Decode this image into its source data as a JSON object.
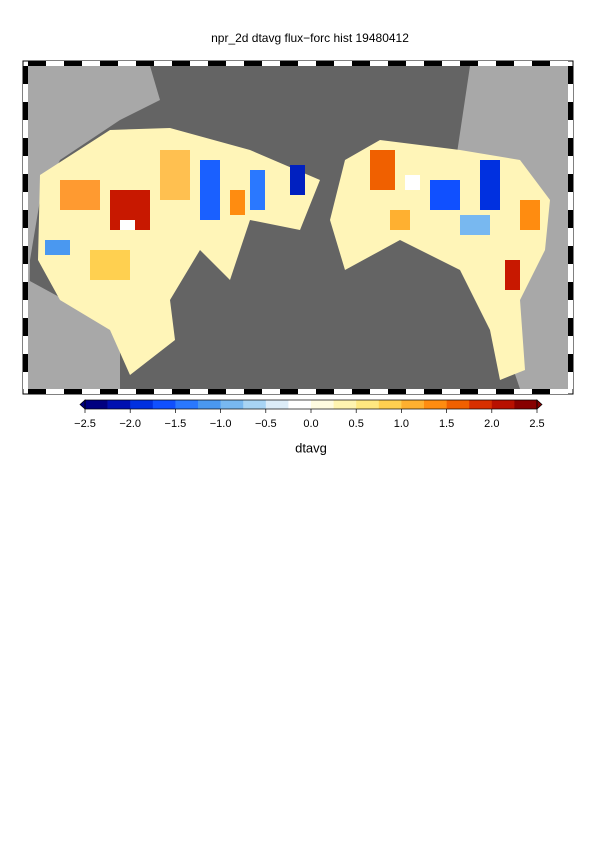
{
  "chart_data": {
    "type": "map",
    "title": "npr_2d dtavg flux−forc hist 19480412",
    "colorbar": {
      "label": "dtavg",
      "lim": [
        -2.5,
        2.5
      ],
      "ticks": [
        {
          "value": -2.5,
          "label": "−2.5"
        },
        {
          "value": -2.0,
          "label": "−2.0"
        },
        {
          "value": -1.5,
          "label": "−1.5"
        },
        {
          "value": -1.0,
          "label": "−1.0"
        },
        {
          "value": -0.5,
          "label": "−0.5"
        },
        {
          "value": 0,
          "label": "0.0"
        },
        {
          "value": 0.5,
          "label": "0.5"
        },
        {
          "value": 1.0,
          "label": "1.0"
        },
        {
          "value": 1.5,
          "label": "1.5"
        },
        {
          "value": 2.0,
          "label": "2.0"
        },
        {
          "value": 2.5,
          "label": "2.5"
        }
      ],
      "colors": [
        "#000080",
        "#0010b0",
        "#0030e0",
        "#1050ff",
        "#2a78ff",
        "#4a98f0",
        "#78b8f0",
        "#a8d4f4",
        "#dcecf8",
        "#ffffff",
        "#fffbe0",
        "#fff4b0",
        "#ffe880",
        "#ffd050",
        "#ffb030",
        "#ff8c10",
        "#f06000",
        "#d83000",
        "#b81000",
        "#880000"
      ]
    }
  }
}
